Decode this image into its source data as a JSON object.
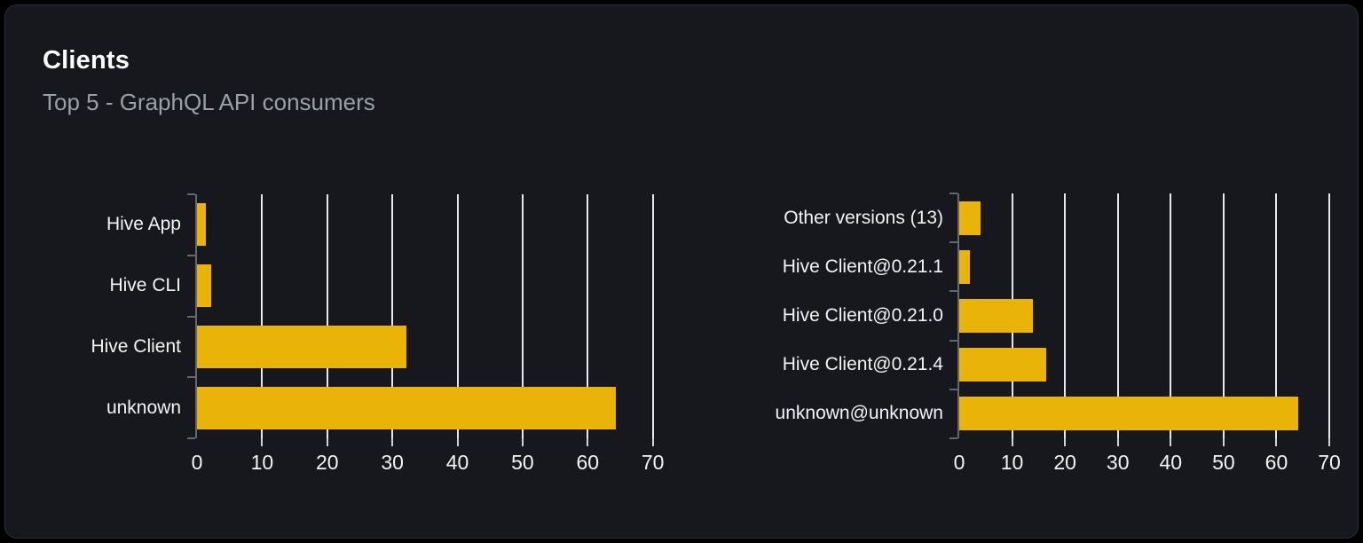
{
  "card": {
    "title": "Clients",
    "subtitle": "Top 5 - GraphQL API consumers",
    "background": "#16181d",
    "border_color": "#2a2d33"
  },
  "colors": {
    "bar": "#e9b308",
    "gridline": "#e6e8eb",
    "axis": "#64676c",
    "x_tick": "#cfd3d8",
    "tick_label": "#f2f3f5",
    "title": "#ffffff",
    "subtitle": "#9aa0a8"
  },
  "chart_data": [
    {
      "type": "bar",
      "orientation": "horizontal",
      "categories": [
        "Hive App",
        "Hive CLI",
        "Hive Client",
        "unknown"
      ],
      "values": [
        1.4,
        2.2,
        32.1,
        64.3
      ],
      "xticks": [
        0,
        10,
        20,
        30,
        40,
        50,
        60,
        70
      ],
      "xlim": [
        0,
        71
      ],
      "grid": true,
      "legend": "none",
      "bar_color": "#e9b308"
    },
    {
      "type": "bar",
      "orientation": "horizontal",
      "categories": [
        "Other versions (13)",
        "Hive Client@0.21.1",
        "Hive Client@0.21.0",
        "Hive Client@0.21.4",
        "unknown@unknown"
      ],
      "values": [
        4.1,
        2.0,
        13.9,
        16.5,
        64.2
      ],
      "xticks": [
        0,
        10,
        20,
        30,
        40,
        50,
        60,
        70
      ],
      "xlim": [
        0,
        71
      ],
      "grid": true,
      "legend": "none",
      "bar_color": "#e9b308"
    }
  ]
}
